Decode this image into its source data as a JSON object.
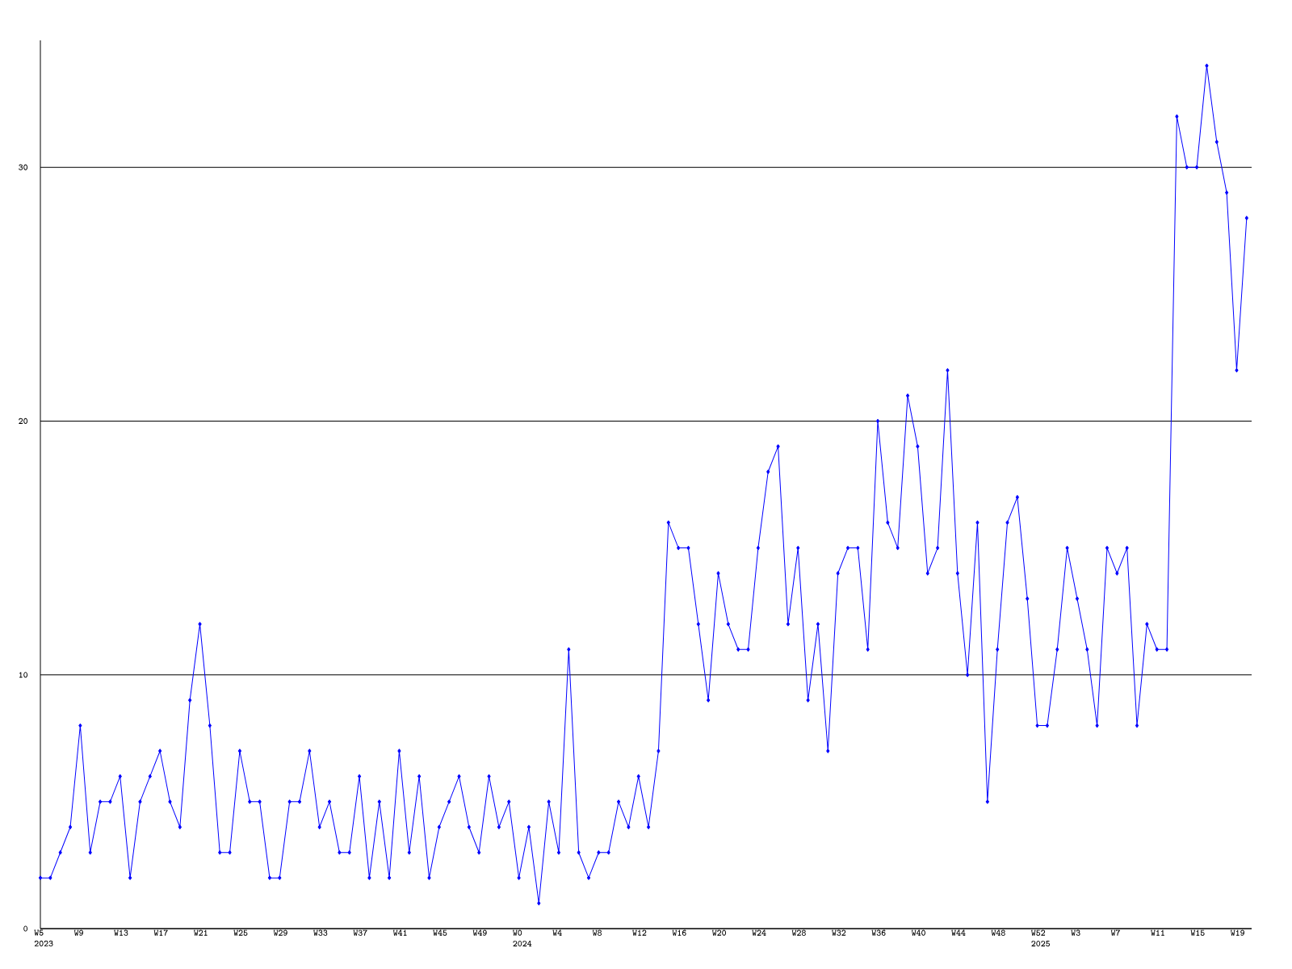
{
  "chart_data": {
    "type": "line",
    "color": "#0000ff",
    "marker": "diamond",
    "grid": "y",
    "ylim": [
      0,
      35
    ],
    "yticks": [
      0,
      10,
      20,
      30
    ],
    "categories": [
      "W5 2023",
      null,
      null,
      null,
      "W9",
      null,
      null,
      null,
      "W13",
      null,
      null,
      null,
      "W17",
      null,
      null,
      null,
      "W21",
      null,
      null,
      null,
      "W25",
      null,
      null,
      null,
      "W29",
      null,
      null,
      null,
      "W33",
      null,
      null,
      null,
      "W37",
      null,
      null,
      null,
      "W41",
      null,
      null,
      null,
      "W45",
      null,
      null,
      null,
      "W49",
      null,
      null,
      null,
      "W0 2024",
      null,
      null,
      null,
      "W4",
      null,
      null,
      null,
      "W8",
      null,
      null,
      null,
      "W12",
      null,
      null,
      null,
      "W16",
      null,
      null,
      null,
      "W20",
      null,
      null,
      null,
      "W24",
      null,
      null,
      null,
      "W28",
      null,
      null,
      null,
      "W32",
      null,
      null,
      null,
      "W36",
      null,
      null,
      null,
      "W40",
      null,
      null,
      null,
      "W44",
      null,
      null,
      null,
      "W48",
      null,
      null,
      null,
      "W52 2025",
      null,
      null,
      null,
      "W3",
      null,
      null,
      null,
      "W7",
      null,
      null,
      null,
      "W11",
      null,
      null,
      null,
      "W15",
      null,
      null,
      null,
      "W19",
      null
    ],
    "values": [
      2,
      2,
      3,
      4,
      8,
      3,
      5,
      5,
      6,
      2,
      5,
      6,
      7,
      5,
      4,
      9,
      12,
      8,
      3,
      3,
      7,
      5,
      5,
      2,
      2,
      5,
      5,
      7,
      4,
      5,
      3,
      3,
      6,
      2,
      5,
      2,
      7,
      3,
      6,
      2,
      4,
      5,
      6,
      4,
      3,
      6,
      4,
      5,
      2,
      4,
      1,
      5,
      3,
      11,
      3,
      2,
      3,
      3,
      5,
      4,
      6,
      4,
      7,
      16,
      15,
      15,
      12,
      9,
      14,
      12,
      11,
      11,
      15,
      18,
      19,
      12,
      15,
      9,
      12,
      7,
      14,
      15,
      15,
      11,
      20,
      16,
      15,
      21,
      19,
      14,
      15,
      22,
      14,
      10,
      16,
      5,
      11,
      16,
      17,
      13,
      8,
      8,
      11,
      15,
      13,
      11,
      8,
      15,
      14,
      15,
      8,
      12,
      11,
      11,
      32,
      30,
      30,
      34,
      31,
      29,
      22,
      28
    ]
  }
}
